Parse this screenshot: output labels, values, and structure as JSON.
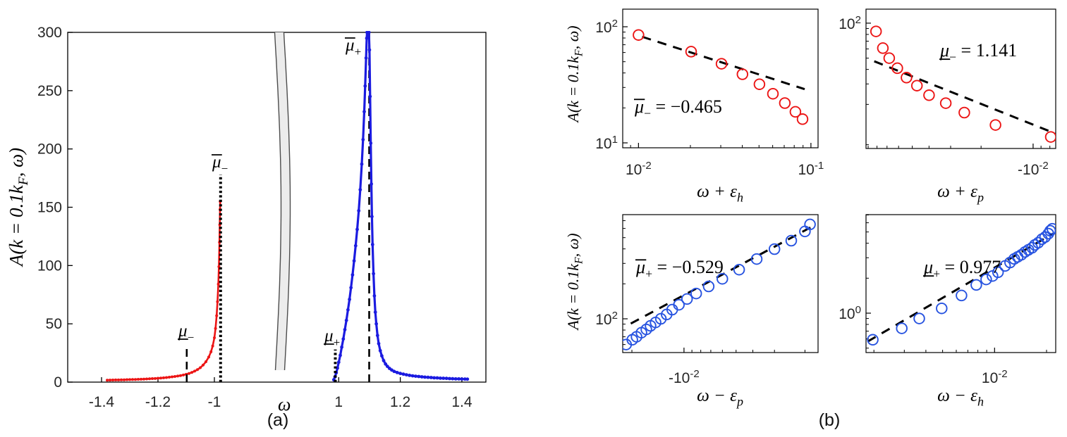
{
  "figure": {
    "panel_a_label": "(a)",
    "panel_b_label": "(b)",
    "background": "#ffffff",
    "colors": {
      "red": "#ec1515",
      "blue_curve": "#1b1be0",
      "blue_circle": "#2753e0",
      "fit_dash": "#000000",
      "axis": "#000000",
      "tick_text": "#262626",
      "band_fill": "#ececec",
      "band_edge": "#4c4c4c"
    }
  },
  "chart_data": [
    {
      "id": "panel-a",
      "type": "line",
      "title": "",
      "xlabel": "ω",
      "ylabel": "A(k = 0.1k_{F}, ω)",
      "ylim": [
        0,
        300
      ],
      "yticks": [
        0,
        50,
        100,
        150,
        200,
        250,
        300
      ],
      "x_axis_break": true,
      "xlim_left": [
        -1.52,
        -0.7875
      ],
      "xlim_right": [
        0.8276,
        1.478
      ],
      "xticks_left": [
        -1.4,
        -1.2,
        -1
      ],
      "xtick_labels_left": [
        "-1.4",
        "-1.2",
        "-1"
      ],
      "xticks_right": [
        1,
        1.2,
        1.4
      ],
      "xtick_labels_right": [
        "1",
        "1.2",
        "1.4"
      ],
      "guides": [
        {
          "name": "mu-bar-plus",
          "symbol": {
            "decor": "over",
            "sub": "+"
          },
          "x": 1.099,
          "y_from": 0,
          "y_to": 300,
          "style": "dashed"
        },
        {
          "name": "mu-bar-minus",
          "symbol": {
            "decor": "over",
            "sub": "−"
          },
          "x": -0.978,
          "y_from": 0,
          "y_to": 178,
          "style": "dotted"
        },
        {
          "name": "mu-under-minus",
          "symbol": {
            "decor": "under",
            "sub": "−"
          },
          "x": -1.098,
          "y_from": 0,
          "y_to": 32,
          "style": "dashed"
        },
        {
          "name": "mu-under-plus",
          "symbol": {
            "decor": "under",
            "sub": "+"
          },
          "x": 0.989,
          "y_from": 0,
          "y_to": 28,
          "style": "dotted"
        }
      ],
      "series": [
        {
          "name": "hole-branch-red",
          "color": "#ec1515",
          "points": [
            [
              -1.38,
              1.7
            ],
            [
              -1.37,
              1.75
            ],
            [
              -1.36,
              1.8
            ],
            [
              -1.35,
              1.85
            ],
            [
              -1.34,
              1.9
            ],
            [
              -1.33,
              1.95
            ],
            [
              -1.32,
              2.0
            ],
            [
              -1.31,
              2.1
            ],
            [
              -1.3,
              2.15
            ],
            [
              -1.29,
              2.25
            ],
            [
              -1.28,
              2.3
            ],
            [
              -1.27,
              2.4
            ],
            [
              -1.26,
              2.5
            ],
            [
              -1.25,
              2.6
            ],
            [
              -1.24,
              2.7
            ],
            [
              -1.23,
              2.85
            ],
            [
              -1.22,
              3.0
            ],
            [
              -1.21,
              3.1
            ],
            [
              -1.2,
              3.3
            ],
            [
              -1.19,
              3.5
            ],
            [
              -1.18,
              3.7
            ],
            [
              -1.17,
              3.9
            ],
            [
              -1.16,
              4.2
            ],
            [
              -1.15,
              4.5
            ],
            [
              -1.14,
              4.8
            ],
            [
              -1.13,
              5.2
            ],
            [
              -1.12,
              5.6
            ],
            [
              -1.11,
              6.1
            ],
            [
              -1.1,
              6.7
            ],
            [
              -1.09,
              7.4
            ],
            [
              -1.08,
              8.3
            ],
            [
              -1.07,
              9.4
            ],
            [
              -1.06,
              10.7
            ],
            [
              -1.05,
              12.4
            ],
            [
              -1.04,
              14.6
            ],
            [
              -1.03,
              17.5
            ],
            [
              -1.02,
              21.5
            ],
            [
              -1.012,
              26
            ],
            [
              -1.006,
              31
            ],
            [
              -1.0,
              38
            ],
            [
              -0.996,
              46
            ],
            [
              -0.992,
              57
            ],
            [
              -0.989,
              69
            ],
            [
              -0.986,
              84
            ],
            [
              -0.984,
              99
            ],
            [
              -0.982,
              120
            ],
            [
              -0.981,
              135
            ],
            [
              -0.98,
              148
            ],
            [
              -0.9795,
              155
            ]
          ]
        },
        {
          "name": "particle-branch-blue",
          "color": "#1b1be0",
          "points": [
            [
              0.984,
              2
            ],
            [
              0.988,
              4.5
            ],
            [
              0.992,
              8
            ],
            [
              0.996,
              12
            ],
            [
              1.0,
              17
            ],
            [
              1.005,
              23
            ],
            [
              1.01,
              30
            ],
            [
              1.015,
              37
            ],
            [
              1.02,
              45
            ],
            [
              1.025,
              53
            ],
            [
              1.03,
              62
            ],
            [
              1.035,
              71
            ],
            [
              1.04,
              81
            ],
            [
              1.045,
              92
            ],
            [
              1.05,
              104
            ],
            [
              1.055,
              117
            ],
            [
              1.06,
              131
            ],
            [
              1.065,
              147
            ],
            [
              1.07,
              165
            ],
            [
              1.075,
              187
            ],
            [
              1.079,
              208
            ],
            [
              1.083,
              232
            ],
            [
              1.086,
              254
            ],
            [
              1.089,
              278
            ],
            [
              1.091,
              295
            ],
            [
              1.092,
              300
            ],
            [
              1.098,
              300
            ],
            [
              1.1,
              285
            ],
            [
              1.102,
              245
            ],
            [
              1.104,
              205
            ],
            [
              1.106,
              170
            ],
            [
              1.108,
              142
            ],
            [
              1.11,
              118
            ],
            [
              1.113,
              93
            ],
            [
              1.116,
              74
            ],
            [
              1.119,
              60
            ],
            [
              1.122,
              50
            ],
            [
              1.126,
              40
            ],
            [
              1.13,
              33
            ],
            [
              1.135,
              27
            ],
            [
              1.14,
              22.5
            ],
            [
              1.146,
              18.5
            ],
            [
              1.152,
              15.5
            ],
            [
              1.158,
              13.5
            ],
            [
              1.165,
              11.8
            ],
            [
              1.172,
              10.4
            ],
            [
              1.18,
              9.2
            ],
            [
              1.19,
              8.2
            ],
            [
              1.2,
              7.4
            ],
            [
              1.21,
              6.8
            ],
            [
              1.22,
              6.3
            ],
            [
              1.23,
              5.8
            ],
            [
              1.24,
              5.4
            ],
            [
              1.25,
              5.1
            ],
            [
              1.26,
              4.8
            ],
            [
              1.27,
              4.5
            ],
            [
              1.28,
              4.3
            ],
            [
              1.29,
              4.1
            ],
            [
              1.3,
              3.9
            ],
            [
              1.31,
              3.7
            ],
            [
              1.32,
              3.6
            ],
            [
              1.33,
              3.4
            ],
            [
              1.34,
              3.3
            ],
            [
              1.35,
              3.2
            ],
            [
              1.36,
              3.0
            ],
            [
              1.37,
              2.9
            ],
            [
              1.38,
              2.8
            ],
            [
              1.39,
              2.75
            ],
            [
              1.4,
              2.65
            ],
            [
              1.41,
              2.6
            ],
            [
              1.418,
              2.55
            ]
          ]
        }
      ]
    },
    {
      "id": "panel-b-top-left",
      "type": "scatter",
      "xscale": "log",
      "yscale": "log",
      "xlabel": "ω + ε_{h}",
      "ylabel": "A(k = 0.1k_{F}, ω)",
      "xlim": [
        0.0081,
        0.11
      ],
      "ylim": [
        9.07,
        141.8
      ],
      "xticks": [
        {
          "v": 0.01,
          "label": "10^{-2}"
        },
        {
          "v": 0.1,
          "label": "10^{-1}"
        }
      ],
      "yticks": [
        {
          "v": 100,
          "label": "10^{2}"
        },
        {
          "v": 10,
          "label": "10^{1}"
        }
      ],
      "marker_color": "#ec1515",
      "points": [
        [
          0.01,
          85
        ],
        [
          0.0202,
          61
        ],
        [
          0.0303,
          48
        ],
        [
          0.0401,
          39
        ],
        [
          0.0503,
          32
        ],
        [
          0.0602,
          26.5
        ],
        [
          0.0706,
          22
        ],
        [
          0.0813,
          18.5
        ],
        [
          0.0894,
          16
        ]
      ],
      "fit_line": {
        "from": [
          0.0105,
          82
        ],
        "to": [
          0.092,
          29
        ]
      },
      "annotation": {
        "symbol": {
          "decor": "over",
          "sub": "−"
        },
        "rest": " = −0.465",
        "exponent": -0.465
      }
    },
    {
      "id": "panel-b-top-right",
      "type": "scatter",
      "xscale": "neg-log",
      "yscale": "log",
      "xlabel": "ω + ε_{p}",
      "ylabel": "",
      "xlim": [
        -0.0926,
        -0.0074
      ],
      "ylim": [
        8.35,
        132
      ],
      "xticks": [
        {
          "v": -0.01,
          "label": "-10^{-2}"
        }
      ],
      "yticks": [
        {
          "v": 100,
          "label": "10^{2}"
        }
      ],
      "marker_color": "#ec1515",
      "points": [
        [
          -0.081,
          85
        ],
        [
          -0.074,
          61
        ],
        [
          -0.068,
          50
        ],
        [
          -0.061,
          41
        ],
        [
          -0.054,
          34
        ],
        [
          -0.047,
          29
        ],
        [
          -0.04,
          24
        ],
        [
          -0.032,
          20.5
        ],
        [
          -0.025,
          17
        ],
        [
          -0.0165,
          13.3
        ],
        [
          -0.0079,
          10.5
        ]
      ],
      "fit_line": {
        "from": [
          -0.083,
          47
        ],
        "to": [
          -0.0074,
          11.2
        ]
      },
      "annotation": {
        "symbol": {
          "decor": "under",
          "sub": "−"
        },
        "rest": " = 1.141",
        "exponent": 1.141
      }
    },
    {
      "id": "panel-b-bottom-left",
      "type": "scatter",
      "xscale": "neg-log",
      "yscale": "log",
      "xlabel": "ω − ε_{p}",
      "ylabel": "A(k = 0.1k_{F}, ω)",
      "xlim": [
        -0.0226,
        -0.00168
      ],
      "ylim": [
        51.2,
        789
      ],
      "xticks": [
        {
          "v": -0.01,
          "label": "-10^{-2}"
        }
      ],
      "yticks": [
        {
          "v": 100,
          "label": "10^{2}"
        }
      ],
      "marker_color": "#2753e0",
      "points": [
        [
          -0.0216,
          60
        ],
        [
          -0.0199,
          66
        ],
        [
          -0.0188,
          70
        ],
        [
          -0.0176,
          76
        ],
        [
          -0.0165,
          81
        ],
        [
          -0.0156,
          87
        ],
        [
          -0.0146,
          93
        ],
        [
          -0.0136,
          100
        ],
        [
          -0.0126,
          109
        ],
        [
          -0.0117,
          120
        ],
        [
          -0.0107,
          132
        ],
        [
          -0.0096,
          148
        ],
        [
          -0.0085,
          165
        ],
        [
          -0.0072,
          190
        ],
        [
          -0.006,
          221
        ],
        [
          -0.0048,
          265
        ],
        [
          -0.0038,
          327
        ],
        [
          -0.003,
          398
        ],
        [
          -0.0024,
          471
        ],
        [
          -0.002,
          565
        ],
        [
          -0.00187,
          650
        ]
      ],
      "fit_line": {
        "from": [
          -0.0203,
          91
        ],
        "to": [
          -0.00182,
          622
        ]
      },
      "annotation": {
        "symbol": {
          "decor": "over",
          "sub": "+"
        },
        "rest": " = −0.529",
        "exponent": -0.529
      }
    },
    {
      "id": "panel-b-bottom-right",
      "type": "scatter",
      "xscale": "log",
      "yscale": "log",
      "xlabel": "ω − ε_{h}",
      "ylabel": "",
      "xlim": [
        0.0018,
        0.0226
      ],
      "ylim": [
        0.458,
        7.05
      ],
      "xticks": [
        {
          "v": 0.01,
          "label": "10^{-2}"
        }
      ],
      "yticks": [
        {
          "v": 1,
          "label": "10^{0}"
        }
      ],
      "marker_color": "#2753e0",
      "points": [
        [
          0.00197,
          0.59
        ],
        [
          0.0029,
          0.74
        ],
        [
          0.00366,
          0.9
        ],
        [
          0.00494,
          1.1
        ],
        [
          0.00643,
          1.42
        ],
        [
          0.00784,
          1.75
        ],
        [
          0.00894,
          1.95
        ],
        [
          0.00973,
          2.09
        ],
        [
          0.01047,
          2.25
        ],
        [
          0.0115,
          2.55
        ],
        [
          0.0123,
          2.73
        ],
        [
          0.013,
          2.93
        ],
        [
          0.0136,
          3.05
        ],
        [
          0.0143,
          3.18
        ],
        [
          0.015,
          3.36
        ],
        [
          0.0157,
          3.51
        ],
        [
          0.0165,
          3.66
        ],
        [
          0.0171,
          3.87
        ],
        [
          0.0179,
          4.04
        ],
        [
          0.0188,
          4.33
        ],
        [
          0.0196,
          4.52
        ],
        [
          0.0205,
          4.84
        ],
        [
          0.021,
          5.12
        ],
        [
          0.0216,
          5.33
        ]
      ],
      "fit_line": {
        "from": [
          0.00184,
          0.57
        ],
        "to": [
          0.0218,
          4.84
        ]
      },
      "annotation": {
        "symbol": {
          "decor": "under",
          "sub": "+"
        },
        "rest": " = 0.977",
        "exponent": 0.977
      }
    }
  ]
}
